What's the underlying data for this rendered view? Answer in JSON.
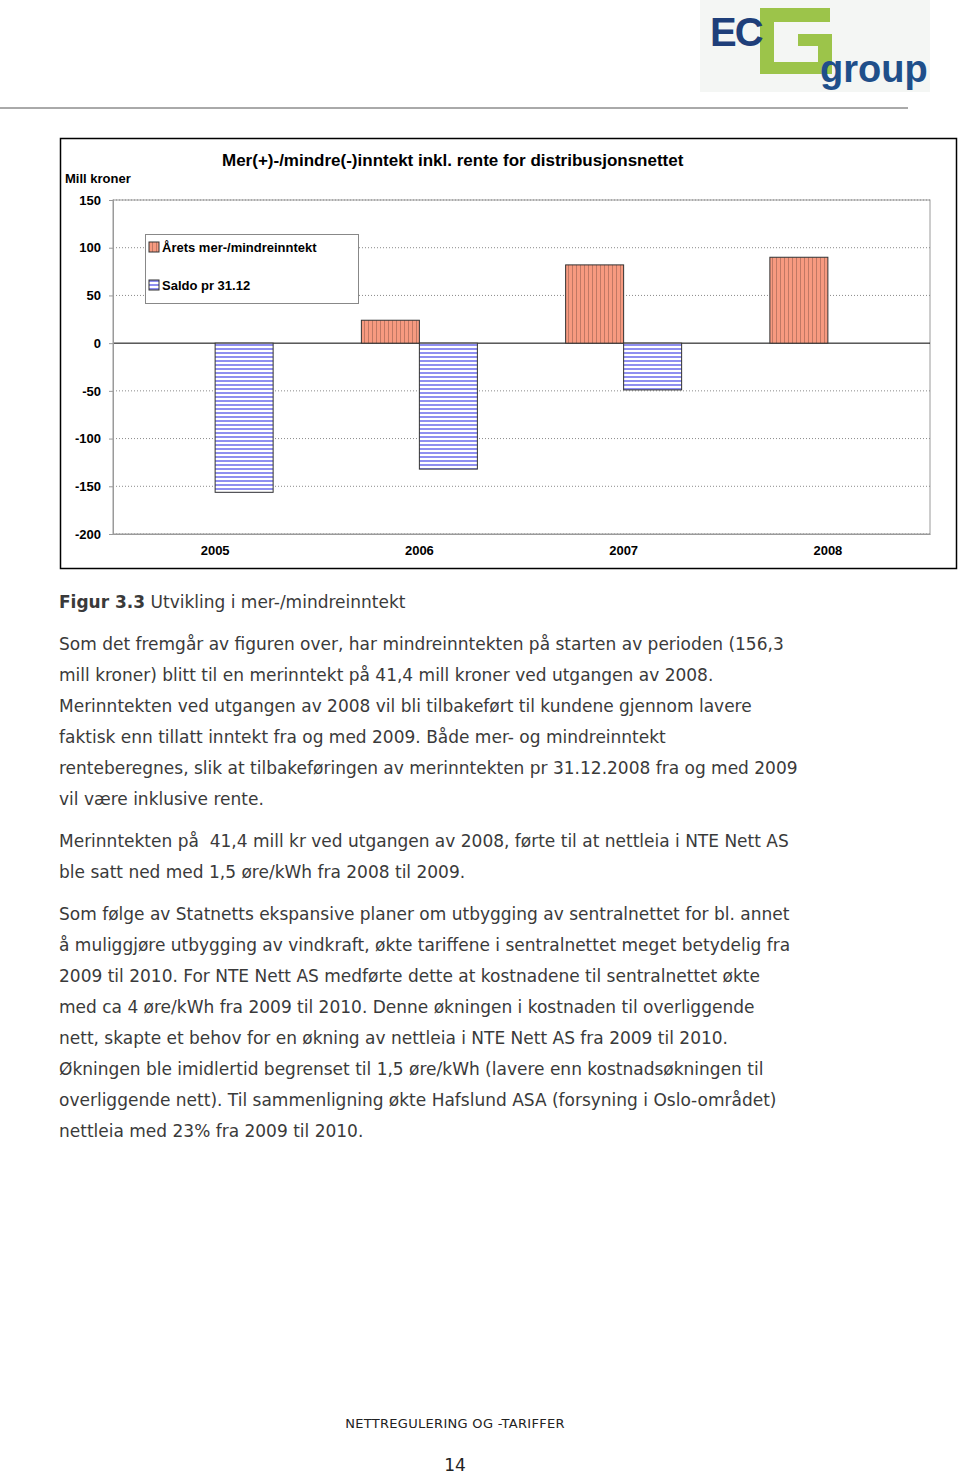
{
  "header": {
    "logo": [
      "EC",
      "group"
    ]
  },
  "chart_data": {
    "type": "bar",
    "title": "Mer(+)-/mindre(-)inntekt inkl. rente for distribusjonsnettet",
    "y_label": "Mill kroner",
    "categories": [
      "2005",
      "2006",
      "2007",
      "2008"
    ],
    "series": [
      {
        "name": "Årets mer-/mindreinntekt",
        "color": "#f79a80",
        "values": [
          null,
          24,
          82,
          90
        ]
      },
      {
        "name": "Saldo pr 31.12",
        "color": "#8f8ff0",
        "values": [
          -156.3,
          -132,
          -49,
          null
        ]
      }
    ],
    "ylim": [
      -200,
      150
    ],
    "yticks": [
      -200,
      -150,
      -100,
      -50,
      0,
      50,
      100,
      150
    ],
    "grid": true,
    "legend": "upper left"
  },
  "caption": {
    "label": "Figur 3.3",
    "text": "Utvikling i mer-/mindreinntekt"
  },
  "paragraphs": [
    [
      "Som det fremgår av figuren over, har mindreinntekten på starten av perioden (156,3",
      "mill kroner) blitt til en merinntekt på 41,4 mill kroner ved utgangen av 2008.",
      "Merinntekten ved utgangen av 2008 vil bli tilbakeført til kundene gjennom lavere",
      "faktisk enn tillatt inntekt fra og med 2009. Både mer- og mindreinntekt",
      "renteberegnes, slik at tilbakeføringen av merinntekten pr 31.12.2008 fra og med 2009",
      "vil være inklusive rente."
    ],
    [
      "Merinntekten på  41,4 mill kr ved utgangen av 2008, førte til at nettleia i NTE Nett AS",
      "ble satt ned med 1,5 øre/kWh fra 2008 til 2009."
    ],
    [
      "Som følge av Statnetts ekspansive planer om utbygging av sentralnettet for bl. annet",
      "å muliggjøre utbygging av vindkraft, økte tariffene i sentralnettet meget betydelig fra",
      "2009 til 2010. For NTE Nett AS medførte dette at kostnadene til sentralnettet økte",
      "med ca 4 øre/kWh fra 2009 til 2010. Denne økningen i kostnaden til overliggende",
      "nett, skapte et behov for en økning av nettleia i NTE Nett AS fra 2009 til 2010.",
      "Økningen ble imidlertid begrenset til 1,5 øre/kWh (lavere enn kostnadsøkningen til",
      "overliggende nett). Til sammenligning økte Hafslund ASA (forsyning i Oslo-området)",
      "nettleia med 23% fra 2009 til 2010."
    ]
  ],
  "footer": {
    "title": "NETTREGULERING OG -TARIFFER",
    "page": "14"
  }
}
